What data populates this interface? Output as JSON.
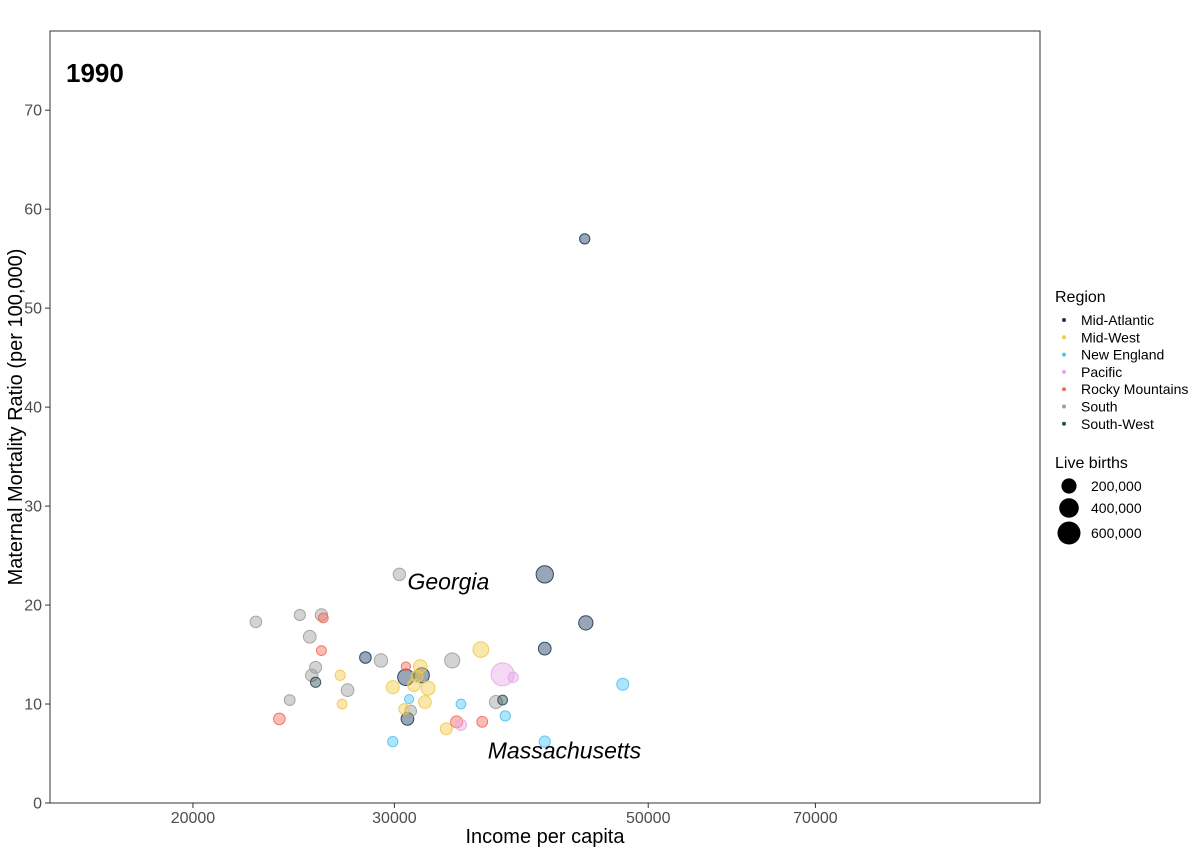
{
  "chart_data": {
    "type": "scatter",
    "title": "1990",
    "xlabel": "Income per capita",
    "ylabel": "Maternal Mortality Ratio (per 100,000)",
    "x_scale": "log",
    "xlim": [
      15000,
      110000
    ],
    "ylim": [
      0,
      78
    ],
    "x_ticks": [
      20000,
      30000,
      50000,
      70000
    ],
    "y_ticks": [
      0,
      10,
      20,
      30,
      40,
      50,
      60,
      70
    ],
    "grid": false,
    "legend_position": "right",
    "region_legend": {
      "title": "Region",
      "items": [
        {
          "label": "Mid-Atlantic",
          "color": "#1a3a5c"
        },
        {
          "label": "Mid-West",
          "color": "#f2c94c"
        },
        {
          "label": "New England",
          "color": "#4fc3f7"
        },
        {
          "label": "Pacific",
          "color": "#e6a8e6"
        },
        {
          "label": "Rocky Mountains",
          "color": "#f26c5a"
        },
        {
          "label": "South",
          "color": "#9e9e9e"
        },
        {
          "label": "South-West",
          "color": "#2f4f4f"
        }
      ]
    },
    "size_legend": {
      "title": "Live births",
      "items": [
        {
          "label": "200,000",
          "value": 200000
        },
        {
          "label": "400,000",
          "value": 400000
        },
        {
          "label": "600,000",
          "value": 600000
        }
      ]
    },
    "annotations": [
      {
        "text": "Georgia",
        "x": 30800,
        "y": 22.4
      },
      {
        "text": "Massachusetts",
        "x": 36200,
        "y": 5.3
      }
    ],
    "points": [
      {
        "x": 44000,
        "y": 57.0,
        "region": "Mid-Atlantic",
        "births": 60000
      },
      {
        "x": 40600,
        "y": 23.1,
        "region": "Mid-Atlantic",
        "births": 290000
      },
      {
        "x": 30300,
        "y": 23.1,
        "region": "South",
        "births": 110000
      },
      {
        "x": 44100,
        "y": 18.2,
        "region": "Mid-Atlantic",
        "births": 170000
      },
      {
        "x": 40600,
        "y": 15.6,
        "region": "Mid-Atlantic",
        "births": 120000
      },
      {
        "x": 37300,
        "y": 13.0,
        "region": "Pacific",
        "births": 600000
      },
      {
        "x": 35700,
        "y": 15.5,
        "region": "Mid-West",
        "births": 220000
      },
      {
        "x": 33700,
        "y": 14.4,
        "region": "South",
        "births": 200000
      },
      {
        "x": 31700,
        "y": 12.9,
        "region": "Mid-Atlantic",
        "births": 200000
      },
      {
        "x": 30700,
        "y": 12.7,
        "region": "Mid-Atlantic",
        "births": 250000
      },
      {
        "x": 30800,
        "y": 8.5,
        "region": "Mid-Atlantic",
        "births": 120000
      },
      {
        "x": 28300,
        "y": 14.7,
        "region": "Mid-Atlantic",
        "births": 90000
      },
      {
        "x": 29200,
        "y": 14.4,
        "region": "South",
        "births": 140000
      },
      {
        "x": 31600,
        "y": 13.8,
        "region": "Mid-West",
        "births": 140000
      },
      {
        "x": 31400,
        "y": 12.8,
        "region": "Mid-West",
        "births": 100000
      },
      {
        "x": 32100,
        "y": 11.6,
        "region": "Mid-West",
        "births": 160000
      },
      {
        "x": 31200,
        "y": 11.9,
        "region": "Mid-West",
        "births": 110000
      },
      {
        "x": 29900,
        "y": 11.7,
        "region": "Mid-West",
        "births": 130000
      },
      {
        "x": 30900,
        "y": 10.5,
        "region": "New England",
        "births": 40000
      },
      {
        "x": 31900,
        "y": 10.2,
        "region": "Mid-West",
        "births": 120000
      },
      {
        "x": 30600,
        "y": 9.5,
        "region": "Mid-West",
        "births": 70000
      },
      {
        "x": 31000,
        "y": 9.3,
        "region": "South",
        "births": 90000
      },
      {
        "x": 30700,
        "y": 13.8,
        "region": "Rocky Mountains",
        "births": 40000
      },
      {
        "x": 36800,
        "y": 10.2,
        "region": "South",
        "births": 130000
      },
      {
        "x": 37300,
        "y": 10.4,
        "region": "South-West",
        "births": 50000
      },
      {
        "x": 38100,
        "y": 12.7,
        "region": "Pacific",
        "births": 60000
      },
      {
        "x": 34300,
        "y": 10.0,
        "region": "New England",
        "births": 50000
      },
      {
        "x": 33300,
        "y": 7.5,
        "region": "Mid-West",
        "births": 100000
      },
      {
        "x": 34000,
        "y": 8.2,
        "region": "Rocky Mountains",
        "births": 100000
      },
      {
        "x": 35800,
        "y": 8.2,
        "region": "Rocky Mountains",
        "births": 70000
      },
      {
        "x": 37500,
        "y": 8.8,
        "region": "New England",
        "births": 60000
      },
      {
        "x": 34300,
        "y": 7.9,
        "region": "Pacific",
        "births": 80000
      },
      {
        "x": 40600,
        "y": 6.2,
        "region": "New England",
        "births": 80000
      },
      {
        "x": 47500,
        "y": 12.0,
        "region": "New England",
        "births": 100000
      },
      {
        "x": 29900,
        "y": 6.2,
        "region": "New England",
        "births": 60000
      },
      {
        "x": 22700,
        "y": 18.3,
        "region": "South",
        "births": 90000
      },
      {
        "x": 24800,
        "y": 19.0,
        "region": "South",
        "births": 80000
      },
      {
        "x": 25900,
        "y": 19.0,
        "region": "South",
        "births": 110000
      },
      {
        "x": 26000,
        "y": 18.7,
        "region": "Rocky Mountains",
        "births": 50000
      },
      {
        "x": 25300,
        "y": 16.8,
        "region": "South",
        "births": 120000
      },
      {
        "x": 25900,
        "y": 15.4,
        "region": "Rocky Mountains",
        "births": 50000
      },
      {
        "x": 25600,
        "y": 13.7,
        "region": "South",
        "births": 100000
      },
      {
        "x": 25400,
        "y": 12.9,
        "region": "South",
        "births": 110000
      },
      {
        "x": 25600,
        "y": 12.2,
        "region": "South-West",
        "births": 60000
      },
      {
        "x": 26900,
        "y": 12.9,
        "region": "Mid-West",
        "births": 60000
      },
      {
        "x": 27300,
        "y": 11.4,
        "region": "South",
        "births": 120000
      },
      {
        "x": 27000,
        "y": 10.0,
        "region": "Mid-West",
        "births": 50000
      },
      {
        "x": 24300,
        "y": 10.4,
        "region": "South",
        "births": 70000
      },
      {
        "x": 23800,
        "y": 8.5,
        "region": "Rocky Mountains",
        "births": 90000
      }
    ]
  }
}
